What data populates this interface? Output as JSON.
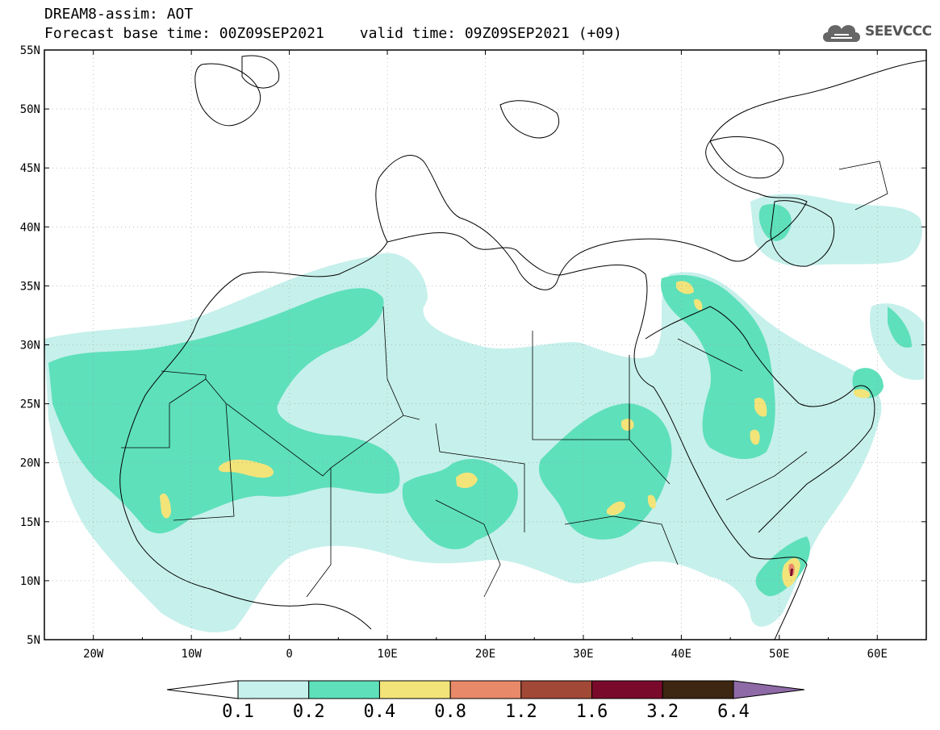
{
  "title": {
    "line1": "DREAM8-assim: AOT",
    "base_time": "Forecast base time: 00Z09SEP2021",
    "valid_time": "valid time: 09Z09SEP2021 (+09)"
  },
  "logo": {
    "text": "SEEVCCC",
    "icon": "cloud-icon"
  },
  "map": {
    "variable": "AOT",
    "lon_range": [
      -25,
      65
    ],
    "lat_range": [
      5,
      55
    ],
    "lon_ticks": [
      "20W",
      "10W",
      "0",
      "10E",
      "20E",
      "30E",
      "40E",
      "50E",
      "60E"
    ],
    "lat_ticks": [
      "55N",
      "50N",
      "45N",
      "40N",
      "35N",
      "30N",
      "25N",
      "20N",
      "15N",
      "10N",
      "5N"
    ],
    "colors": {
      "level_0_1": "#c6f0eb",
      "level_0_2": "#5ee0bb",
      "level_0_4": "#f3e47a",
      "level_0_8": "#e8896a"
    }
  },
  "colorbar": {
    "labels": [
      "0.1",
      "0.2",
      "0.4",
      "0.8",
      "1.2",
      "1.6",
      "3.2",
      "6.4"
    ],
    "colors": [
      "#c6f0eb",
      "#5ee0bb",
      "#f3e47a",
      "#e8896a",
      "#a24836",
      "#7a0a2c",
      "#3d2612",
      "#8e6aa6"
    ]
  }
}
